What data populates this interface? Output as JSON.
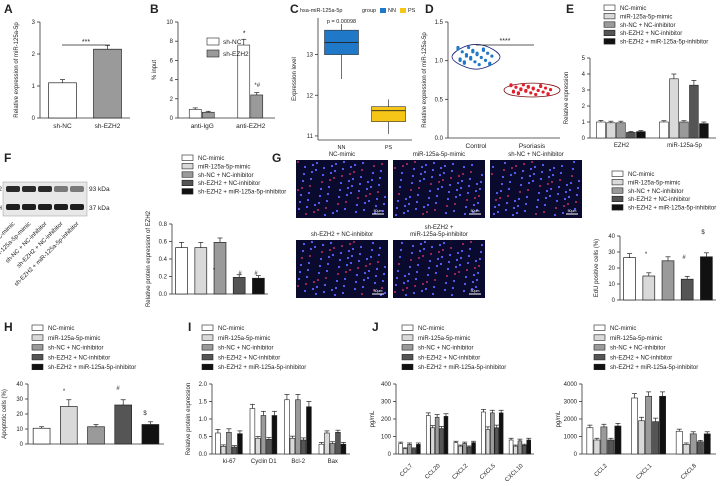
{
  "panel_labels": [
    "A",
    "B",
    "C",
    "D",
    "E",
    "F",
    "G",
    "H",
    "I",
    "J"
  ],
  "colors": {
    "white": "#ffffff",
    "light": "#d9d9d9",
    "mid": "#9a9a9a",
    "dark": "#555555",
    "black": "#111111",
    "blue": "#1f78c8",
    "yellow": "#f5c518",
    "red": "#e0202a",
    "navy": "#1a237e"
  },
  "legend_five": [
    "NC-mimic",
    "miR-125a-5p-mimic",
    "sh-NC + NC-inhibitor",
    "sh-EZH2 + NC-inhibitor",
    "sh-EZH2 + miR-125a-5p-inhibitor"
  ],
  "western": {
    "proteins": [
      "EZH2",
      "GAPDH"
    ],
    "kda": [
      "93 kDa",
      "37 kDa"
    ],
    "lanes": [
      "NC-mimic",
      "miR-125a-5p-mimic",
      "sh-NC + NC-inhibitor",
      "sh-EZH2 + NC-inhibitor",
      "sh-EZH2 + miR-125a-5p-inhibitor"
    ]
  },
  "micro": {
    "titles": [
      "NC-mimic",
      "miR-125a-5p-mimic",
      "sh-NC + NC-inhibitor",
      "sh-EZH2 + NC-inhibitor",
      "sh-EZH2 +\nmiR-125a-5p-inhibitor"
    ],
    "scale": "50μm"
  },
  "chart_data": [
    {
      "id": "A",
      "type": "bar",
      "categories": [
        "sh-NC",
        "sh-EZH2"
      ],
      "values": [
        1.1,
        2.15
      ],
      "errors": [
        0.1,
        0.12
      ],
      "ylabel": "Relative expression of miR-125a-5p",
      "ylim": [
        0,
        3
      ],
      "yticks": [
        0,
        1,
        2,
        3
      ],
      "annotation": "***"
    },
    {
      "id": "B",
      "type": "bar",
      "categories": [
        "anti-IgG",
        "anti-EZH2"
      ],
      "series": [
        {
          "name": "sh-NC",
          "values": [
            0.9,
            7.6
          ],
          "errors": [
            0.15,
            0.6
          ]
        },
        {
          "name": "sh-EZH2",
          "values": [
            0.6,
            2.4
          ],
          "errors": [
            0.1,
            0.25
          ]
        }
      ],
      "ylabel": "% input",
      "ylim": [
        0,
        10
      ],
      "yticks": [
        0,
        2,
        4,
        6,
        8,
        10
      ],
      "annotations": [
        "*",
        "*#"
      ]
    },
    {
      "id": "C",
      "type": "box",
      "title": "hsa-miR-125a-5p",
      "legend_title": "group",
      "categories": [
        "NN",
        "PS"
      ],
      "boxes": [
        {
          "min": 12.4,
          "q1": 13.0,
          "median": 13.3,
          "q3": 13.6,
          "max": 13.75
        },
        {
          "min": 11.05,
          "q1": 11.35,
          "median": 11.62,
          "q3": 11.72,
          "max": 11.9
        }
      ],
      "pvalue": "p = 0.00098",
      "ylabel": "Expression level",
      "ylim": [
        10.9,
        13.9
      ],
      "yticks": [
        11,
        12,
        13
      ]
    },
    {
      "id": "D",
      "type": "violin",
      "categories": [
        "Control",
        "Psoriasis"
      ],
      "centers": [
        1.05,
        0.62
      ],
      "ylabel": "Relative expression of miR-125a-5p",
      "ylim": [
        0,
        1.5
      ],
      "yticks": [
        0.0,
        0.5,
        1.0,
        1.5
      ],
      "annotation": "****"
    },
    {
      "id": "E",
      "type": "bar",
      "categories": [
        "EZH2",
        "miR-125a-5p"
      ],
      "series": [
        {
          "name": "NC-mimic",
          "values": [
            1.0,
            1.0
          ],
          "errors": [
            0.1,
            0.08
          ]
        },
        {
          "name": "miR-125a-5p-mimic",
          "values": [
            0.95,
            3.7
          ],
          "errors": [
            0.1,
            0.3
          ]
        },
        {
          "name": "sh-NC + NC-inhibitor",
          "values": [
            0.95,
            1.0
          ],
          "errors": [
            0.1,
            0.08
          ]
        },
        {
          "name": "sh-EZH2 + NC-inhibitor",
          "values": [
            0.35,
            3.3
          ],
          "errors": [
            0.06,
            0.3
          ]
        },
        {
          "name": "sh-EZH2 + miR-125a-5p-inhibitor",
          "values": [
            0.4,
            0.9
          ],
          "errors": [
            0.06,
            0.1
          ]
        }
      ],
      "ylabel": "Relative expression",
      "ylim": [
        0,
        5
      ],
      "yticks": [
        0,
        1,
        2,
        3,
        4,
        5
      ]
    },
    {
      "id": "F",
      "type": "bar",
      "categories": [
        "NC-mimic",
        "miR-125a-5p-mimic",
        "sh-NC + NC-inhibitor",
        "sh-EZH2 + NC-inhibitor",
        "sh-EZH2 + miR-125a-5p-inhibitor"
      ],
      "values": [
        0.53,
        0.53,
        0.59,
        0.19,
        0.18
      ],
      "errors": [
        0.06,
        0.06,
        0.05,
        0.03,
        0.03
      ],
      "ylabel": "Relative protein expression of EZH2",
      "ylim": [
        0,
        0.8
      ],
      "yticks": [
        0.0,
        0.2,
        0.4,
        0.6,
        0.8
      ]
    },
    {
      "id": "G",
      "type": "bar",
      "categories": [
        "NC-mimic",
        "miR-125a-5p-mimic",
        "sh-NC + NC-inhibitor",
        "sh-EZH2 + NC-inhibitor",
        "sh-EZH2 + miR-125a-5p-inhibitor"
      ],
      "values": [
        26.5,
        15.0,
        24.5,
        13.0,
        27.0
      ],
      "errors": [
        2.5,
        2.0,
        2.5,
        1.8,
        2.5
      ],
      "ylabel": "EdU positive cells (%)",
      "ylim": [
        0,
        40
      ],
      "yticks": [
        0,
        10,
        20,
        30,
        40
      ]
    },
    {
      "id": "H",
      "type": "bar",
      "categories": [
        "NC-mimic",
        "miR-125a-5p-mimic",
        "sh-NC + NC-inhibitor",
        "sh-EZH2 + NC-inhibitor",
        "sh-EZH2 + miR-125a-5p-inhibitor"
      ],
      "values": [
        10.5,
        25.0,
        11.5,
        26.0,
        13.0
      ],
      "errors": [
        1.0,
        4.5,
        1.5,
        3.5,
        1.8
      ],
      "ylabel": "Apoptotic cells (%)",
      "ylim": [
        0,
        40
      ],
      "yticks": [
        0,
        10,
        20,
        30,
        40
      ]
    },
    {
      "id": "I",
      "type": "bar",
      "categories": [
        "ki-67",
        "Cyclin D1",
        "Bcl-2",
        "Bax"
      ],
      "series": [
        {
          "name": "NC-mimic",
          "values": [
            0.6,
            1.3,
            1.55,
            0.28
          ],
          "errors": [
            0.1,
            0.12,
            0.15,
            0.05
          ]
        },
        {
          "name": "miR-125a-5p-mimic",
          "values": [
            0.22,
            0.45,
            0.45,
            0.6
          ],
          "errors": [
            0.04,
            0.05,
            0.06,
            0.06
          ]
        },
        {
          "name": "sh-NC + NC-inhibitor",
          "values": [
            0.62,
            1.1,
            1.55,
            0.3
          ],
          "errors": [
            0.1,
            0.12,
            0.15,
            0.05
          ]
        },
        {
          "name": "sh-EZH2 + NC-inhibitor",
          "values": [
            0.2,
            0.42,
            0.4,
            0.62
          ],
          "errors": [
            0.04,
            0.05,
            0.06,
            0.06
          ]
        },
        {
          "name": "sh-EZH2 + miR-125a-5p-inhibitor",
          "values": [
            0.58,
            1.1,
            1.35,
            0.28
          ],
          "errors": [
            0.08,
            0.12,
            0.15,
            0.05
          ]
        }
      ],
      "ylabel": "Relative protein expression",
      "ylim": [
        0,
        2.0
      ],
      "yticks": [
        0.0,
        0.5,
        1.0,
        1.5,
        2.0
      ]
    },
    {
      "id": "J1",
      "type": "bar",
      "categories": [
        "CCL7",
        "CCL20",
        "CXCL2",
        "CXCL5",
        "CXCL10"
      ],
      "series": [
        {
          "name": "NC-mimic",
          "values": [
            60,
            220,
            65,
            240,
            80
          ],
          "errors": [
            8,
            15,
            8,
            15,
            10
          ]
        },
        {
          "name": "miR-125a-5p-mimic",
          "values": [
            30,
            150,
            45,
            140,
            45
          ],
          "errors": [
            5,
            12,
            6,
            15,
            6
          ]
        },
        {
          "name": "sh-NC + NC-inhibitor",
          "values": [
            55,
            210,
            60,
            235,
            75
          ],
          "errors": [
            8,
            15,
            8,
            15,
            10
          ]
        },
        {
          "name": "sh-EZH2 + NC-inhibitor",
          "values": [
            30,
            145,
            40,
            150,
            50
          ],
          "errors": [
            5,
            12,
            6,
            15,
            6
          ]
        },
        {
          "name": "sh-EZH2 + miR-125a-5p-inhibitor",
          "values": [
            55,
            215,
            65,
            235,
            80
          ],
          "errors": [
            8,
            15,
            8,
            15,
            10
          ]
        }
      ],
      "ylabel": "pg/mL",
      "ylim": [
        0,
        400
      ],
      "yticks": [
        0,
        100,
        200,
        300,
        400
      ]
    },
    {
      "id": "J2",
      "type": "bar",
      "categories": [
        "CCL2",
        "CXCL1",
        "CXCL8"
      ],
      "series": [
        {
          "name": "NC-mimic",
          "values": [
            1500,
            3200,
            1300
          ],
          "errors": [
            150,
            250,
            120
          ]
        },
        {
          "name": "miR-125a-5p-mimic",
          "values": [
            800,
            1900,
            550
          ],
          "errors": [
            100,
            200,
            80
          ]
        },
        {
          "name": "sh-NC + NC-inhibitor",
          "values": [
            1550,
            3300,
            1150
          ],
          "errors": [
            150,
            250,
            120
          ]
        },
        {
          "name": "sh-EZH2 + NC-inhibitor",
          "values": [
            800,
            1850,
            700
          ],
          "errors": [
            100,
            200,
            80
          ]
        },
        {
          "name": "sh-EZH2 + miR-125a-5p-inhibitor",
          "values": [
            1600,
            3300,
            1150
          ],
          "errors": [
            150,
            250,
            120
          ]
        }
      ],
      "ylabel": "pg/mL",
      "ylim": [
        0,
        4000
      ],
      "yticks": [
        0,
        1000,
        2000,
        3000,
        4000
      ]
    }
  ]
}
